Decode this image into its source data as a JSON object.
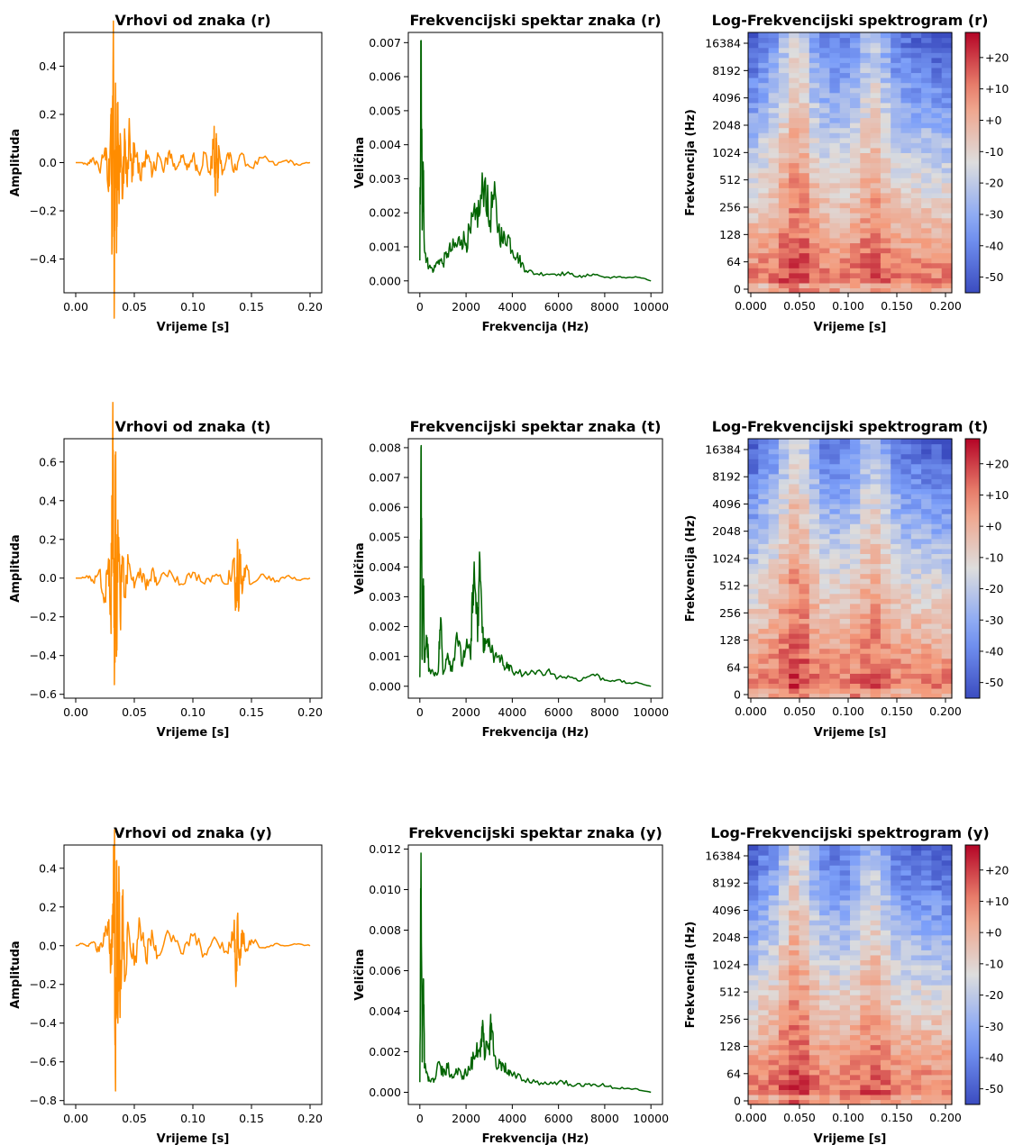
{
  "chart_data": [
    {
      "row": 0,
      "col": 0,
      "type": "line",
      "title": "Vrhovi od znaka (r)",
      "xlabel": "Vrijeme [s]",
      "ylabel": "Amplituda",
      "xlim": [
        -0.01,
        0.21
      ],
      "ylim": [
        -0.54,
        0.54
      ],
      "xticks": [
        0.0,
        0.05,
        0.1,
        0.15,
        0.2
      ],
      "xtick_labels": [
        "0.00",
        "0.05",
        "0.10",
        "0.15",
        "0.20"
      ],
      "yticks": [
        -0.4,
        -0.2,
        0.0,
        0.2,
        0.4
      ],
      "ytick_labels": [
        "−0.4",
        "−0.2",
        "0.0",
        "0.2",
        "0.4"
      ],
      "color": "#ff8c00",
      "series": [
        {
          "x": [
            0.0,
            0.005,
            0.01,
            0.015,
            0.02,
            0.025,
            0.028,
            0.03,
            0.031,
            0.032,
            0.033,
            0.034,
            0.035,
            0.036,
            0.037,
            0.038,
            0.04,
            0.042,
            0.044,
            0.046,
            0.048,
            0.05,
            0.055,
            0.06,
            0.065,
            0.07,
            0.075,
            0.08,
            0.085,
            0.09,
            0.095,
            0.1,
            0.105,
            0.11,
            0.115,
            0.118,
            0.119,
            0.12,
            0.121,
            0.122,
            0.125,
            0.13,
            0.135,
            0.14,
            0.15,
            0.16,
            0.17,
            0.18,
            0.19,
            0.2
          ],
          "values": [
            0.0,
            0.0,
            -0.01,
            0.02,
            -0.03,
            0.06,
            -0.12,
            0.2,
            -0.35,
            0.48,
            -0.49,
            0.33,
            -0.25,
            0.25,
            -0.17,
            0.12,
            -0.15,
            0.1,
            -0.1,
            0.13,
            -0.08,
            0.08,
            -0.07,
            0.05,
            -0.06,
            0.04,
            -0.04,
            0.05,
            -0.03,
            0.03,
            -0.03,
            0.03,
            -0.04,
            0.04,
            -0.05,
            0.1,
            -0.13,
            0.12,
            -0.12,
            0.07,
            -0.05,
            0.04,
            -0.04,
            0.03,
            -0.02,
            0.02,
            -0.01,
            0.01,
            -0.01,
            0.0
          ]
        }
      ]
    },
    {
      "row": 0,
      "col": 1,
      "type": "line",
      "title": "Frekvencijski spektar znaka (r)",
      "xlabel": "Frekvencija (Hz)",
      "ylabel": "Veličina",
      "xlim": [
        -500,
        10500
      ],
      "ylim": [
        -0.00035,
        0.0073
      ],
      "xticks": [
        0,
        2000,
        4000,
        6000,
        8000,
        10000
      ],
      "xtick_labels": [
        "0",
        "2000",
        "4000",
        "6000",
        "8000",
        "10000"
      ],
      "yticks": [
        0.0,
        0.001,
        0.002,
        0.003,
        0.004,
        0.005,
        0.006,
        0.007
      ],
      "ytick_labels": [
        "0.000",
        "0.001",
        "0.002",
        "0.003",
        "0.004",
        "0.005",
        "0.006",
        "0.007"
      ],
      "color": "#006400",
      "series": [
        {
          "x": [
            0,
            50,
            100,
            150,
            200,
            300,
            400,
            600,
            800,
            1000,
            1200,
            1400,
            1600,
            1800,
            2000,
            2200,
            2400,
            2600,
            2800,
            3000,
            3200,
            3400,
            3600,
            3800,
            4000,
            4200,
            4400,
            4600,
            5000,
            5500,
            6000,
            6500,
            7000,
            7500,
            8000,
            8500,
            9000,
            9500,
            10000
          ],
          "values": [
            0.0006,
            0.007,
            0.0015,
            0.0032,
            0.0009,
            0.0006,
            0.0004,
            0.0003,
            0.0006,
            0.0005,
            0.0008,
            0.0009,
            0.001,
            0.0012,
            0.0011,
            0.0014,
            0.0018,
            0.002,
            0.0029,
            0.0016,
            0.0024,
            0.0015,
            0.0011,
            0.0013,
            0.0009,
            0.0007,
            0.0005,
            0.0003,
            0.0002,
            0.0002,
            0.0002,
            0.0002,
            0.0001,
            0.0002,
            0.0001,
            0.0001,
            0.0001,
            0.0001,
            0.0
          ]
        }
      ]
    },
    {
      "row": 0,
      "col": 2,
      "type": "heatmap",
      "title": "Log-Frekvencijski spektrogram (r)",
      "xlabel": "Vrijeme [s]",
      "ylabel": "Frekvencija (Hz)",
      "xlim": [
        0.0,
        0.2
      ],
      "xticks": [
        0.0,
        0.05,
        0.1,
        0.15,
        0.2
      ],
      "xtick_labels": [
        "0.000",
        "0.050",
        "0.100",
        "0.150",
        "0.200"
      ],
      "ytick_labels": [
        "0",
        "64",
        "128",
        "256",
        "512",
        "1024",
        "2048",
        "4096",
        "8192",
        "16384"
      ],
      "colorbar": {
        "range": [
          -55,
          28
        ],
        "ticks": [
          20,
          10,
          0,
          -10,
          -20,
          -30,
          -40,
          -50
        ],
        "tick_labels": [
          "+20",
          "+10",
          "+0",
          "-10",
          "-20",
          "-30",
          "-40",
          "-50"
        ]
      }
    },
    {
      "row": 1,
      "col": 0,
      "type": "line",
      "title": "Vrhovi od znaka (t)",
      "xlabel": "Vrijeme [s]",
      "ylabel": "Amplituda",
      "xlim": [
        -0.01,
        0.21
      ],
      "ylim": [
        -0.62,
        0.72
      ],
      "xticks": [
        0.0,
        0.05,
        0.1,
        0.15,
        0.2
      ],
      "xtick_labels": [
        "0.00",
        "0.05",
        "0.10",
        "0.15",
        "0.20"
      ],
      "yticks": [
        -0.6,
        -0.4,
        -0.2,
        0.0,
        0.2,
        0.4,
        0.6
      ],
      "ytick_labels": [
        "−0.6",
        "−0.4",
        "−0.2",
        "0.0",
        "0.2",
        "0.4",
        "0.6"
      ],
      "color": "#ff8c00",
      "series": [
        {
          "x": [
            0.0,
            0.005,
            0.01,
            0.015,
            0.02,
            0.025,
            0.028,
            0.03,
            0.031,
            0.032,
            0.033,
            0.034,
            0.035,
            0.036,
            0.038,
            0.04,
            0.042,
            0.045,
            0.05,
            0.055,
            0.06,
            0.065,
            0.07,
            0.08,
            0.09,
            0.1,
            0.11,
            0.12,
            0.13,
            0.135,
            0.137,
            0.138,
            0.139,
            0.14,
            0.142,
            0.145,
            0.15,
            0.16,
            0.17,
            0.18,
            0.19,
            0.2
          ],
          "values": [
            0.0,
            0.0,
            0.01,
            -0.02,
            0.04,
            -0.1,
            0.1,
            -0.2,
            0.4,
            0.66,
            -0.55,
            0.5,
            -0.3,
            0.3,
            -0.2,
            0.1,
            -0.1,
            0.08,
            -0.05,
            0.05,
            -0.06,
            0.04,
            -0.03,
            0.04,
            -0.03,
            0.03,
            -0.03,
            0.02,
            -0.03,
            0.1,
            -0.15,
            0.2,
            -0.17,
            0.12,
            -0.08,
            0.05,
            -0.03,
            0.02,
            -0.02,
            0.01,
            -0.01,
            0.0
          ]
        }
      ]
    },
    {
      "row": 1,
      "col": 1,
      "type": "line",
      "title": "Frekvencijski spektar znaka (t)",
      "xlabel": "Frekvencija (Hz)",
      "ylabel": "Veličina",
      "xlim": [
        -500,
        10500
      ],
      "ylim": [
        -0.0004,
        0.0083
      ],
      "xticks": [
        0,
        2000,
        4000,
        6000,
        8000,
        10000
      ],
      "xtick_labels": [
        "0",
        "2000",
        "4000",
        "6000",
        "8000",
        "10000"
      ],
      "yticks": [
        0.0,
        0.001,
        0.002,
        0.003,
        0.004,
        0.005,
        0.006,
        0.007,
        0.008
      ],
      "ytick_labels": [
        "0.000",
        "0.001",
        "0.002",
        "0.003",
        "0.004",
        "0.005",
        "0.006",
        "0.007",
        "0.008"
      ],
      "color": "#006400",
      "series": [
        {
          "x": [
            0,
            50,
            100,
            150,
            200,
            300,
            400,
            600,
            800,
            900,
            1000,
            1200,
            1400,
            1600,
            1800,
            2000,
            2200,
            2300,
            2400,
            2500,
            2600,
            2700,
            2800,
            3000,
            3200,
            3400,
            3600,
            3800,
            4000,
            4500,
            5000,
            5500,
            6000,
            6500,
            7000,
            7500,
            8000,
            8500,
            9000,
            9500,
            10000
          ],
          "values": [
            0.0003,
            0.008,
            0.0009,
            0.0036,
            0.0008,
            0.0015,
            0.0006,
            0.0004,
            0.0005,
            0.0023,
            0.0004,
            0.0011,
            0.0005,
            0.0018,
            0.0007,
            0.0013,
            0.0009,
            0.0034,
            0.0032,
            0.0015,
            0.0042,
            0.0018,
            0.0012,
            0.0016,
            0.0008,
            0.001,
            0.0007,
            0.0006,
            0.0005,
            0.0004,
            0.0004,
            0.0005,
            0.0003,
            0.0003,
            0.0002,
            0.0004,
            0.0002,
            0.0002,
            0.0001,
            0.0001,
            0.0
          ]
        }
      ]
    },
    {
      "row": 1,
      "col": 2,
      "type": "heatmap",
      "title": "Log-Frekvencijski spektrogram (t)",
      "xlabel": "Vrijeme [s]",
      "ylabel": "Frekvencija (Hz)",
      "xlim": [
        0.0,
        0.2
      ],
      "xticks": [
        0.0,
        0.05,
        0.1,
        0.15,
        0.2
      ],
      "xtick_labels": [
        "0.000",
        "0.050",
        "0.100",
        "0.150",
        "0.200"
      ],
      "ytick_labels": [
        "0",
        "64",
        "128",
        "256",
        "512",
        "1024",
        "2048",
        "4096",
        "8192",
        "16384"
      ],
      "colorbar": {
        "range": [
          -55,
          28
        ],
        "ticks": [
          20,
          10,
          0,
          -10,
          -20,
          -30,
          -40,
          -50
        ],
        "tick_labels": [
          "+20",
          "+10",
          "+0",
          "-10",
          "-20",
          "-30",
          "-40",
          "-50"
        ]
      }
    },
    {
      "row": 2,
      "col": 0,
      "type": "line",
      "title": "Vrhovi od znaka (y)",
      "xlabel": "Vrijeme [s]",
      "ylabel": "Amplituda",
      "xlim": [
        -0.01,
        0.21
      ],
      "ylim": [
        -0.82,
        0.52
      ],
      "xticks": [
        0.0,
        0.05,
        0.1,
        0.15,
        0.2
      ],
      "xtick_labels": [
        "0.00",
        "0.05",
        "0.10",
        "0.15",
        "0.20"
      ],
      "yticks": [
        -0.8,
        -0.6,
        -0.4,
        -0.2,
        0.0,
        0.2,
        0.4
      ],
      "ytick_labels": [
        "−0.8",
        "−0.6",
        "−0.4",
        "−0.2",
        "0.0",
        "0.2",
        "0.4"
      ],
      "color": "#ff8c00",
      "series": [
        {
          "x": [
            0.0,
            0.005,
            0.01,
            0.015,
            0.02,
            0.025,
            0.028,
            0.03,
            0.032,
            0.033,
            0.034,
            0.035,
            0.036,
            0.037,
            0.038,
            0.04,
            0.042,
            0.045,
            0.05,
            0.055,
            0.06,
            0.065,
            0.07,
            0.08,
            0.09,
            0.1,
            0.11,
            0.12,
            0.13,
            0.135,
            0.137,
            0.138,
            0.14,
            0.142,
            0.145,
            0.15,
            0.16,
            0.17,
            0.18,
            0.19,
            0.2
          ],
          "values": [
            0.0,
            0.01,
            0.0,
            0.02,
            -0.03,
            0.05,
            0.1,
            -0.1,
            0.2,
            0.46,
            -0.75,
            0.44,
            -0.4,
            0.3,
            -0.25,
            0.2,
            -0.18,
            0.1,
            -0.1,
            0.1,
            -0.08,
            0.08,
            -0.05,
            0.06,
            -0.04,
            0.05,
            -0.04,
            0.03,
            -0.04,
            0.08,
            -0.18,
            0.15,
            -0.1,
            0.08,
            -0.03,
            0.03,
            -0.01,
            0.01,
            0.0,
            0.01,
            0.0
          ]
        }
      ]
    },
    {
      "row": 2,
      "col": 1,
      "type": "line",
      "title": "Frekvencijski spektar znaka (y)",
      "xlabel": "Frekvencija (Hz)",
      "ylabel": "Veličina",
      "xlim": [
        -500,
        10500
      ],
      "ylim": [
        -0.0006,
        0.0122
      ],
      "xticks": [
        0,
        2000,
        4000,
        6000,
        8000,
        10000
      ],
      "xtick_labels": [
        "0",
        "2000",
        "4000",
        "6000",
        "8000",
        "10000"
      ],
      "yticks": [
        0.0,
        0.002,
        0.004,
        0.006,
        0.008,
        0.01,
        0.012
      ],
      "ytick_labels": [
        "0.000",
        "0.002",
        "0.004",
        "0.006",
        "0.008",
        "0.010",
        "0.012"
      ],
      "color": "#006400",
      "series": [
        {
          "x": [
            0,
            50,
            100,
            150,
            200,
            300,
            400,
            600,
            800,
            1000,
            1200,
            1400,
            1600,
            1800,
            2000,
            2200,
            2400,
            2600,
            2700,
            2800,
            3000,
            3100,
            3200,
            3400,
            3600,
            3800,
            4000,
            4500,
            5000,
            5500,
            6000,
            6500,
            7000,
            7500,
            8000,
            8500,
            9000,
            9500,
            10000
          ],
          "values": [
            0.0005,
            0.0118,
            0.0015,
            0.0056,
            0.0012,
            0.001,
            0.0006,
            0.0005,
            0.0015,
            0.0008,
            0.0012,
            0.0007,
            0.001,
            0.0008,
            0.0009,
            0.0012,
            0.0018,
            0.0022,
            0.0031,
            0.0016,
            0.0024,
            0.0034,
            0.0018,
            0.0012,
            0.0014,
            0.0009,
            0.0008,
            0.0006,
            0.0005,
            0.0004,
            0.0005,
            0.0004,
            0.0003,
            0.0004,
            0.0003,
            0.0002,
            0.0002,
            0.0001,
            0.0
          ]
        }
      ]
    },
    {
      "row": 2,
      "col": 2,
      "type": "heatmap",
      "title": "Log-Frekvencijski spektrogram (y)",
      "xlabel": "Vrijeme [s]",
      "ylabel": "Frekvencija (Hz)",
      "xlim": [
        0.0,
        0.2
      ],
      "xticks": [
        0.0,
        0.05,
        0.1,
        0.15,
        0.2
      ],
      "xtick_labels": [
        "0.000",
        "0.050",
        "0.100",
        "0.150",
        "0.200"
      ],
      "ytick_labels": [
        "0",
        "64",
        "128",
        "256",
        "512",
        "1024",
        "2048",
        "4096",
        "8192",
        "16384"
      ],
      "colorbar": {
        "range": [
          -55,
          28
        ],
        "ticks": [
          20,
          10,
          0,
          -10,
          -20,
          -30,
          -40,
          -50
        ],
        "tick_labels": [
          "+20",
          "+10",
          "+0",
          "-10",
          "-20",
          "-30",
          "-40",
          "-50"
        ]
      }
    }
  ]
}
